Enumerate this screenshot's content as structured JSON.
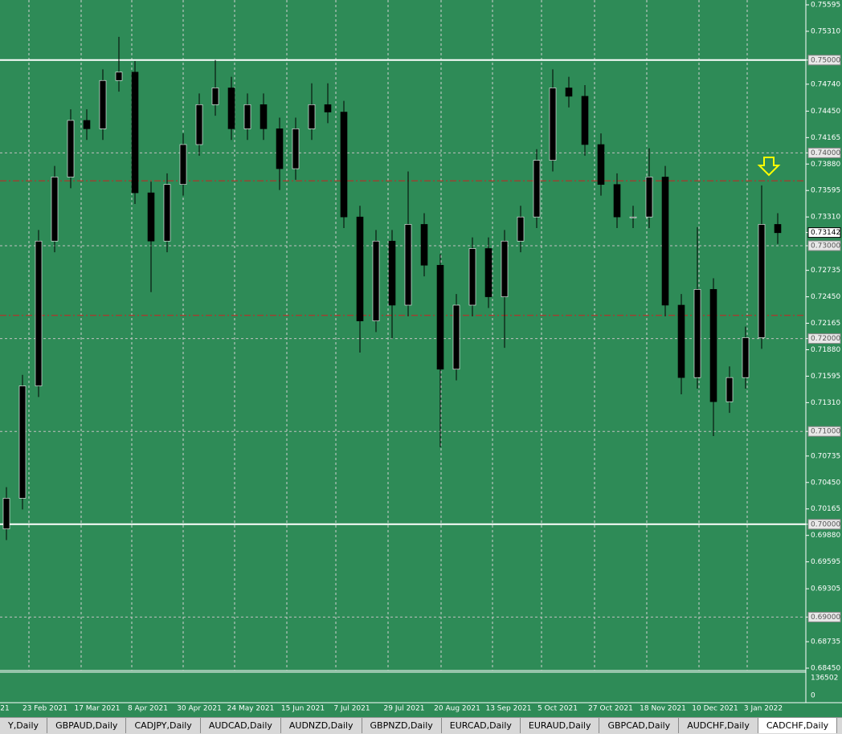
{
  "chart_data": {
    "type": "candlestick",
    "candles": {
      "open": [
        0.6995,
        0.7028,
        0.7149,
        0.7305,
        0.7374,
        0.7435,
        0.7426,
        0.7478,
        0.7487,
        0.7357,
        0.7305,
        0.7366,
        0.7409,
        0.7452,
        0.747,
        0.7426,
        0.7452,
        0.7426,
        0.7383,
        0.7426,
        0.7452,
        0.7444,
        0.7331,
        0.7219,
        0.7305,
        0.7236,
        0.7323,
        0.7279,
        0.7167,
        0.7236,
        0.7297,
        0.7245,
        0.7305,
        0.7331,
        0.7392,
        0.747,
        0.7461,
        0.7409,
        0.7366,
        0.7331,
        0.7331,
        0.7374,
        0.7236,
        0.7158,
        0.7253,
        0.7132,
        0.7158,
        0.7201,
        0.7323
      ],
      "high": [
        0.704,
        0.7161,
        0.7317,
        0.7386,
        0.7447,
        0.7447,
        0.749,
        0.7525,
        0.7499,
        0.7369,
        0.7378,
        0.7421,
        0.7464,
        0.75,
        0.7482,
        0.7464,
        0.7464,
        0.7438,
        0.7438,
        0.7475,
        0.7475,
        0.7456,
        0.7343,
        0.7317,
        0.7317,
        0.738,
        0.7335,
        0.7291,
        0.7248,
        0.7309,
        0.7309,
        0.7317,
        0.7343,
        0.7404,
        0.749,
        0.7482,
        0.7473,
        0.7421,
        0.7378,
        0.7343,
        0.7405,
        0.7386,
        0.7248,
        0.732,
        0.7265,
        0.717,
        0.7213,
        0.7365,
        0.7335
      ],
      "low": [
        0.6983,
        0.7016,
        0.7137,
        0.7293,
        0.7362,
        0.7414,
        0.7414,
        0.7466,
        0.7345,
        0.725,
        0.7293,
        0.7354,
        0.7397,
        0.744,
        0.7414,
        0.7414,
        0.7414,
        0.736,
        0.7371,
        0.7414,
        0.7432,
        0.7319,
        0.7185,
        0.7207,
        0.72,
        0.7224,
        0.7267,
        0.7083,
        0.7155,
        0.7224,
        0.7233,
        0.719,
        0.7293,
        0.7319,
        0.738,
        0.7449,
        0.7397,
        0.7354,
        0.7319,
        0.7319,
        0.7319,
        0.7224,
        0.714,
        0.7146,
        0.7095,
        0.712,
        0.7146,
        0.7189,
        0.7302
      ],
      "close": [
        0.7028,
        0.7149,
        0.7305,
        0.7374,
        0.7435,
        0.7426,
        0.7478,
        0.7487,
        0.7357,
        0.7305,
        0.7366,
        0.7409,
        0.7452,
        0.747,
        0.7426,
        0.7452,
        0.7426,
        0.7383,
        0.7426,
        0.7452,
        0.7444,
        0.7331,
        0.7219,
        0.7305,
        0.7236,
        0.7323,
        0.7279,
        0.7167,
        0.7236,
        0.7297,
        0.7245,
        0.7305,
        0.7331,
        0.7392,
        0.747,
        0.7461,
        0.7409,
        0.7366,
        0.7331,
        0.7331,
        0.7374,
        0.7236,
        0.7158,
        0.7253,
        0.7132,
        0.7158,
        0.7201,
        0.7323,
        0.7314
      ]
    },
    "up_color": "#000000",
    "down_color": "#000000",
    "ylim": [
      0.68424,
      0.75647
    ],
    "yticks": [
      {
        "value": 0.75595,
        "label": "0.75595"
      },
      {
        "value": 0.7531,
        "label": "0.75310"
      },
      {
        "value": 0.75,
        "label": "0.75000"
      },
      {
        "value": 0.7474,
        "label": "0.74740"
      },
      {
        "value": 0.7445,
        "label": "0.74450"
      },
      {
        "value": 0.74165,
        "label": "0.74165"
      },
      {
        "value": 0.74,
        "label": "0.74000"
      },
      {
        "value": 0.7388,
        "label": "0.73880"
      },
      {
        "value": 0.73595,
        "label": "0.73595"
      },
      {
        "value": 0.7331,
        "label": "0.73310"
      },
      {
        "value": 0.73,
        "label": "0.73000"
      },
      {
        "value": 0.72735,
        "label": "0.72735"
      },
      {
        "value": 0.7245,
        "label": "0.72450"
      },
      {
        "value": 0.72165,
        "label": "0.72165"
      },
      {
        "value": 0.72,
        "label": "0.72000"
      },
      {
        "value": 0.7188,
        "label": "0.71880"
      },
      {
        "value": 0.71595,
        "label": "0.71595"
      },
      {
        "value": 0.7131,
        "label": "0.71310"
      },
      {
        "value": 0.71,
        "label": "0.71000"
      },
      {
        "value": 0.70735,
        "label": "0.70735"
      },
      {
        "value": 0.7045,
        "label": "0.70450"
      },
      {
        "value": 0.70165,
        "label": "0.70165"
      },
      {
        "value": 0.7,
        "label": "0.70000"
      },
      {
        "value": 0.6988,
        "label": "0.69880"
      },
      {
        "value": 0.69595,
        "label": "0.69595"
      },
      {
        "value": 0.69305,
        "label": "0.69305"
      },
      {
        "value": 0.69,
        "label": "0.69000"
      },
      {
        "value": 0.68735,
        "label": "0.68735"
      },
      {
        "value": 0.6845,
        "label": "0.68450"
      }
    ],
    "level_lines": [
      0.75,
      0.74,
      0.73,
      0.72,
      0.71,
      0.7,
      0.69
    ],
    "solid_levels": [
      0.75,
      0.7
    ],
    "resistance_lines": [
      0.737,
      0.7225
    ],
    "last_price": {
      "value": 0.73142,
      "label": "0.73142"
    },
    "volume_ticks": [
      136502,
      0
    ],
    "xlabels": [
      "21",
      "23 Feb 2021",
      "17 Mar 2021",
      "8 Apr 2021",
      "30 Apr 2021",
      "24 May 2021",
      "15 Jun 2021",
      "7 Jul 2021",
      "29 Jul 2021",
      "20 Aug 2021",
      "13 Sep 2021",
      "5 Oct 2021",
      "27 Oct 2021",
      "18 Nov 2021",
      "10 Dec 2021",
      "3 Jan 2022"
    ],
    "grid": true
  },
  "tabs": [
    "Y,Daily",
    "GBPAUD,Daily",
    "CADJPY,Daily",
    "AUDCAD,Daily",
    "AUDNZD,Daily",
    "GBPNZD,Daily",
    "EURCAD,Daily",
    "EURAUD,Daily",
    "GBPCAD,Daily",
    "AUDCHF,Daily",
    "CADCHF,Daily"
  ],
  "active_tab": 10
}
